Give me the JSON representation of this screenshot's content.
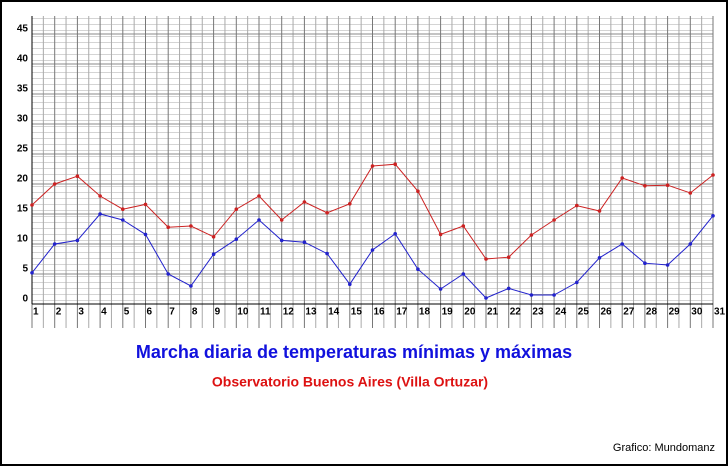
{
  "chart_data": {
    "type": "line",
    "title": "Marcha diaria de temperaturas mínimas y máximas",
    "subtitle": "Observatorio Buenos Aires (Villa Ortuzar)",
    "credit": "Grafico: Mundomanz",
    "x": [
      1,
      2,
      3,
      4,
      5,
      6,
      7,
      8,
      9,
      10,
      11,
      12,
      13,
      14,
      15,
      16,
      17,
      18,
      19,
      20,
      21,
      22,
      23,
      24,
      25,
      26,
      27,
      28,
      29,
      30,
      31
    ],
    "xlim": [
      1,
      31
    ],
    "xticks": [
      1,
      2,
      3,
      4,
      5,
      6,
      7,
      8,
      9,
      10,
      11,
      12,
      13,
      14,
      15,
      16,
      17,
      18,
      19,
      20,
      21,
      22,
      23,
      24,
      25,
      26,
      27,
      28,
      29,
      30,
      31
    ],
    "ylim": [
      0,
      48
    ],
    "yticks": [
      0,
      5,
      10,
      15,
      20,
      25,
      30,
      35,
      40,
      45
    ],
    "grid": true,
    "series": [
      {
        "color": "#cc2222",
        "values": [
          16.5,
          20,
          21.3,
          18,
          15.8,
          16.6,
          12.8,
          13,
          11.2,
          15.8,
          18,
          14,
          17,
          15.2,
          16.7,
          23,
          23.3,
          18.8,
          11.6,
          13,
          7.5,
          7.8,
          11.5,
          14,
          16.4,
          15.5,
          21,
          19.7,
          19.8,
          18.5,
          21.5
        ]
      },
      {
        "color": "#2222cc",
        "values": [
          5.2,
          10,
          10.6,
          15,
          14,
          11.6,
          5,
          3,
          8.3,
          10.8,
          14,
          10.6,
          10.3,
          8.4,
          3.3,
          9,
          11.7,
          5.8,
          2.5,
          5,
          1,
          2.6,
          1.5,
          1.5,
          3.6,
          7.7,
          10,
          6.8,
          6.5,
          10,
          14.7
        ]
      }
    ]
  }
}
